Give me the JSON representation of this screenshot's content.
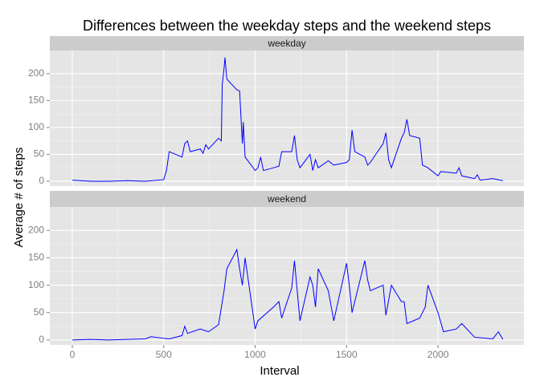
{
  "chart_data": {
    "type": "line",
    "title": "Differences between the weekday steps and the weekend steps",
    "xlabel": "Interval",
    "ylabel": "Average # of steps",
    "color": "#0000ff",
    "xlim": [
      -123,
      2470
    ],
    "ylim": [
      -9,
      243
    ],
    "xticks": [
      0,
      500,
      1000,
      1500,
      2000
    ],
    "yticks": [
      0,
      50,
      100,
      150,
      200
    ],
    "grid": true,
    "facets": [
      {
        "label": "weekday",
        "x": [
          0,
          100,
          200,
          300,
          400,
          500,
          515,
          530,
          600,
          615,
          630,
          645,
          700,
          715,
          730,
          745,
          800,
          815,
          820,
          830,
          835,
          845,
          900,
          915,
          930,
          935,
          945,
          1000,
          1015,
          1030,
          1045,
          1100,
          1130,
          1145,
          1200,
          1215,
          1230,
          1245,
          1300,
          1315,
          1330,
          1345,
          1400,
          1430,
          1500,
          1515,
          1530,
          1545,
          1600,
          1615,
          1630,
          1700,
          1715,
          1730,
          1745,
          1800,
          1815,
          1830,
          1845,
          1900,
          1915,
          1945,
          2000,
          2015,
          2100,
          2115,
          2130,
          2200,
          2215,
          2230,
          2300,
          2355
        ],
        "values": [
          2,
          0,
          0,
          1,
          0,
          3,
          20,
          55,
          45,
          70,
          75,
          55,
          60,
          52,
          68,
          60,
          80,
          75,
          180,
          210,
          230,
          190,
          170,
          168,
          70,
          110,
          45,
          20,
          25,
          45,
          20,
          25,
          28,
          55,
          55,
          85,
          40,
          25,
          50,
          20,
          40,
          25,
          38,
          30,
          35,
          40,
          95,
          55,
          45,
          30,
          35,
          70,
          90,
          40,
          25,
          80,
          90,
          115,
          85,
          80,
          30,
          25,
          10,
          18,
          15,
          25,
          10,
          5,
          12,
          2,
          5,
          1
        ]
      },
      {
        "label": "weekend",
        "x": [
          0,
          100,
          200,
          300,
          400,
          430,
          500,
          530,
          600,
          615,
          630,
          700,
          745,
          800,
          830,
          845,
          900,
          915,
          930,
          945,
          1000,
          1015,
          1100,
          1130,
          1145,
          1200,
          1215,
          1230,
          1245,
          1300,
          1315,
          1330,
          1345,
          1400,
          1430,
          1500,
          1515,
          1530,
          1600,
          1615,
          1630,
          1700,
          1715,
          1745,
          1800,
          1815,
          1830,
          1900,
          1930,
          1945,
          2000,
          2030,
          2100,
          2130,
          2200,
          2300,
          2330,
          2355
        ],
        "values": [
          0,
          1,
          0,
          1,
          2,
          6,
          3,
          2,
          8,
          25,
          12,
          20,
          15,
          28,
          90,
          130,
          165,
          130,
          100,
          150,
          20,
          35,
          60,
          70,
          40,
          95,
          145,
          90,
          35,
          115,
          100,
          60,
          130,
          90,
          35,
          140,
          100,
          50,
          145,
          110,
          90,
          100,
          45,
          100,
          70,
          70,
          30,
          40,
          60,
          100,
          50,
          15,
          20,
          30,
          5,
          2,
          15,
          1
        ]
      }
    ]
  }
}
